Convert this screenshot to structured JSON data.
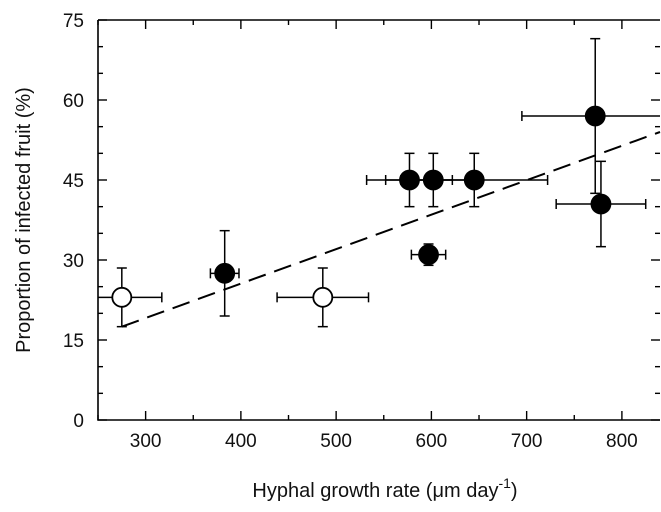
{
  "chart_data": {
    "type": "scatter",
    "xlabel": "Hyphal growth rate (μm day",
    "xlabel_superscript": "-1",
    "xlabel_suffix": ")",
    "ylabel": "Proportion of infected fruit (%)",
    "xlim": [
      250,
      840
    ],
    "ylim": [
      0,
      75
    ],
    "x_ticks": [
      300,
      400,
      500,
      600,
      700,
      800
    ],
    "y_ticks": [
      0,
      15,
      30,
      45,
      60,
      75
    ],
    "x_minor_step": 50,
    "y_minor_step": 5,
    "grid": false,
    "series": [
      {
        "marker": "filled-circle",
        "color": "#000000",
        "points": [
          {
            "x": 383,
            "y": 27.5,
            "x_err": 15,
            "y_err": 8
          },
          {
            "x": 577,
            "y": 45,
            "x_err": 45,
            "y_err": 5
          },
          {
            "x": 602,
            "y": 45,
            "x_err": 50,
            "y_err": 5
          },
          {
            "x": 597,
            "y": 31,
            "x_err": 18,
            "y_err": 2
          },
          {
            "x": 645,
            "y": 45,
            "x_err": 77,
            "y_err": 5
          },
          {
            "x": 772,
            "y": 57,
            "x_err": 77,
            "y_err": 14.5
          },
          {
            "x": 778,
            "y": 40.5,
            "x_err": 47,
            "y_err": 8
          }
        ]
      },
      {
        "marker": "open-circle",
        "color": "#000000",
        "points": [
          {
            "x": 275,
            "y": 23,
            "x_err": 42,
            "y_err": 5.5
          },
          {
            "x": 486,
            "y": 23,
            "x_err": 48,
            "y_err": 5.5
          }
        ]
      }
    ],
    "trend_line": {
      "style": "dashed",
      "x": [
        275,
        840
      ],
      "y": [
        17.5,
        54
      ]
    }
  }
}
